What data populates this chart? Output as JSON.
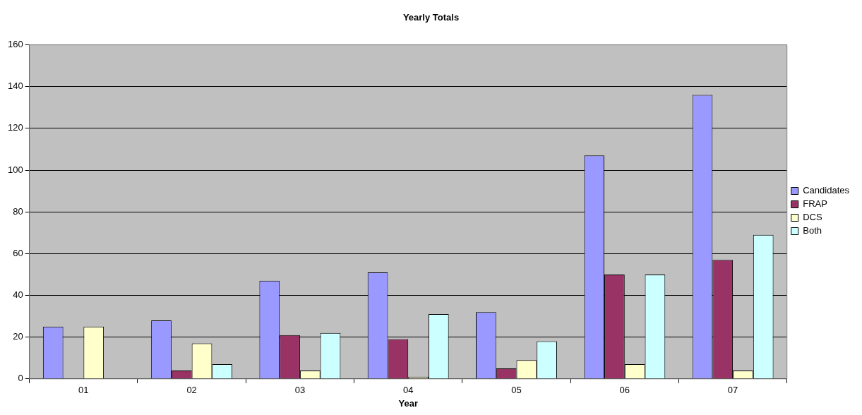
{
  "chart_data": {
    "type": "bar",
    "title": "Yearly Totals",
    "xlabel": "Year",
    "categories": [
      "01",
      "02",
      "03",
      "04",
      "05",
      "06",
      "07"
    ],
    "series": [
      {
        "name": "Candidates",
        "color": "#9999ff",
        "values": [
          25,
          28,
          47,
          51,
          32,
          107,
          136
        ]
      },
      {
        "name": "FRAP",
        "color": "#993366",
        "values": [
          0,
          4,
          21,
          19,
          5,
          50,
          57
        ]
      },
      {
        "name": "DCS",
        "color": "#ffffcc",
        "values": [
          25,
          17,
          4,
          1,
          9,
          7,
          4
        ]
      },
      {
        "name": "Both",
        "color": "#ccffff",
        "values": [
          0,
          7,
          22,
          31,
          18,
          50,
          69
        ]
      }
    ],
    "ylim": [
      0,
      160
    ],
    "yticks": [
      0,
      20,
      40,
      60,
      80,
      100,
      120,
      140,
      160
    ],
    "grid": "y",
    "legend": "right"
  }
}
